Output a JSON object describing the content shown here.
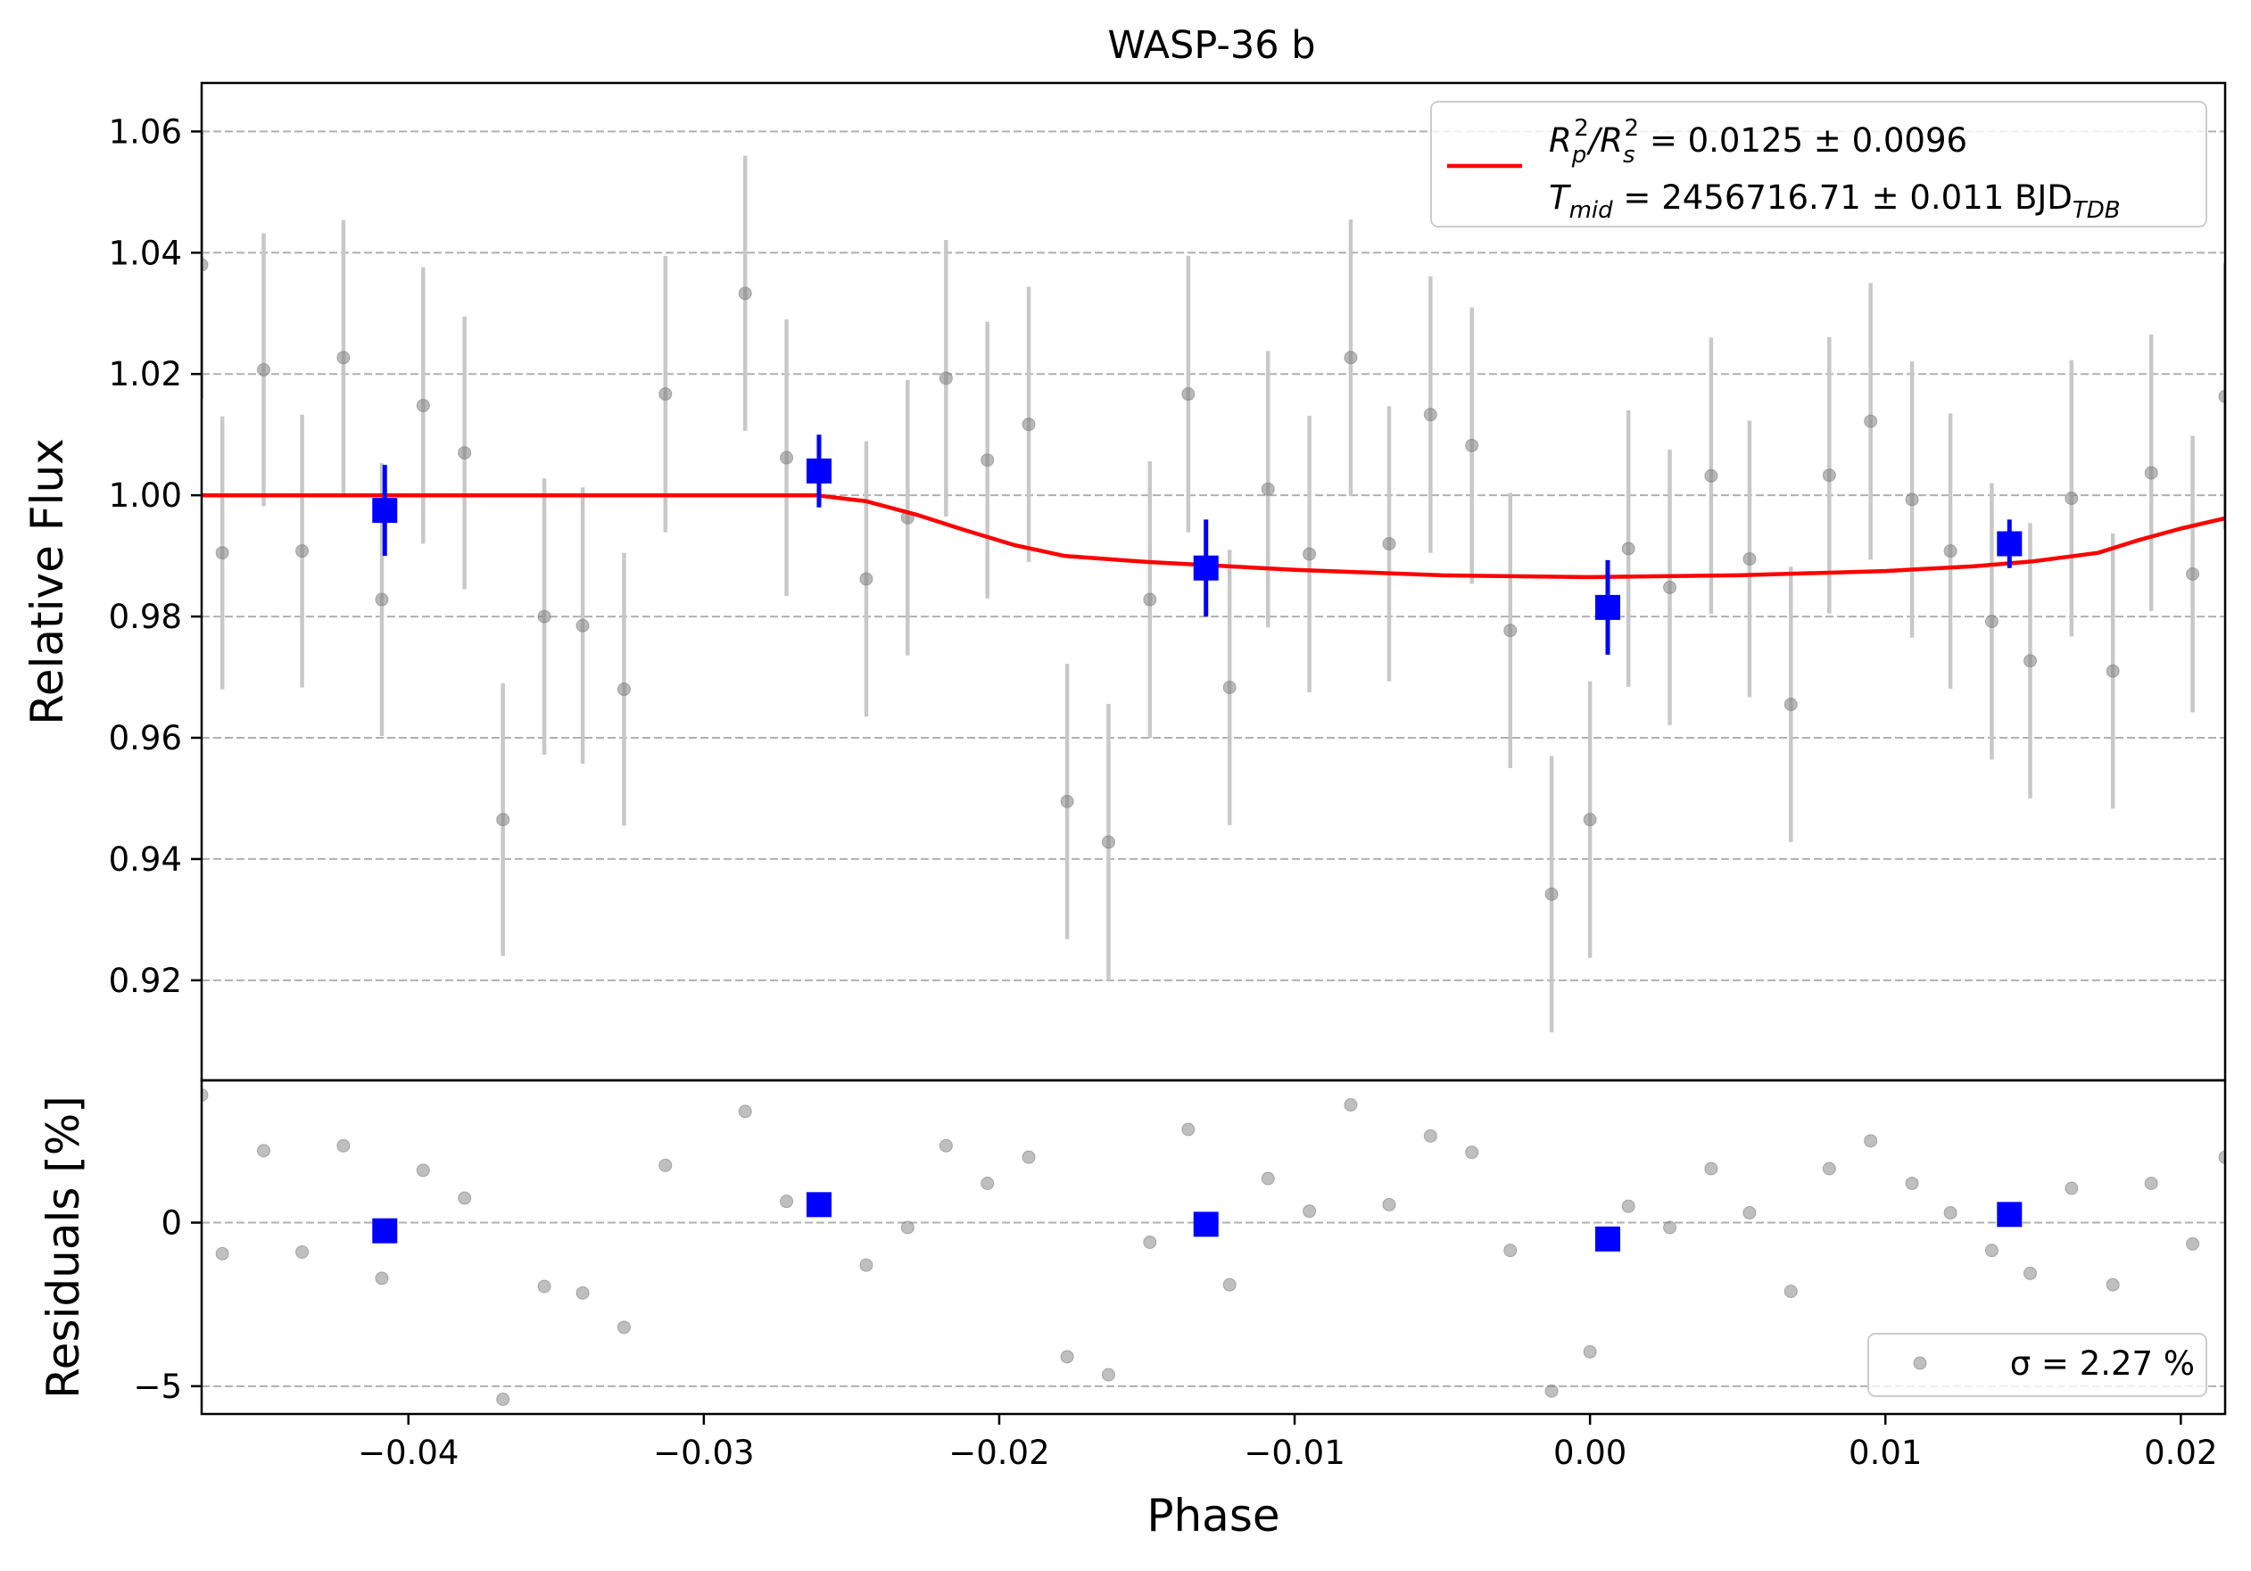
{
  "chart_data": {
    "type": "scatter",
    "title": "WASP-36 b",
    "xlabel": "Phase",
    "xlim": [
      -0.047,
      0.0215
    ],
    "xticks": [
      -0.04,
      -0.03,
      -0.02,
      -0.01,
      0.0,
      0.01,
      0.02
    ],
    "xtick_labels": [
      "−0.04",
      "−0.03",
      "−0.02",
      "−0.01",
      "0.00",
      "0.01",
      "0.02"
    ],
    "grid": "horizontal dashed",
    "top_panel": {
      "ylabel": "Relative Flux",
      "ylim": [
        0.9035,
        1.068
      ],
      "yticks": [
        0.92,
        0.94,
        0.96,
        0.98,
        1.0,
        1.02,
        1.04,
        1.06
      ],
      "ytick_labels": [
        "0.92",
        "0.94",
        "0.96",
        "0.98",
        "1.00",
        "1.02",
        "1.04",
        "1.06"
      ],
      "legend": {
        "placement": "top-right",
        "line1_base": "R",
        "line1_sub1": "p",
        "line1_sup1": "2",
        "line1_slash": "/R",
        "line1_sub2": "s",
        "line1_sup2": "2",
        "line1_rest": " = 0.0125 ± 0.0096",
        "line2_base": "T",
        "line2_sub1": "mid",
        "line2_rest": " = 2456716.71 ± 0.011 BJD",
        "line2_sub2": "TDB"
      },
      "data_points": [
        {
          "x": -0.047,
          "y": 1.038,
          "err": 0.022
        },
        {
          "x": -0.0463,
          "y": 0.9905,
          "err": 0.0225
        },
        {
          "x": -0.0449,
          "y": 1.0207,
          "err": 0.0225
        },
        {
          "x": -0.0436,
          "y": 0.9908,
          "err": 0.0225
        },
        {
          "x": -0.0422,
          "y": 1.0227,
          "err": 0.0227
        },
        {
          "x": -0.0409,
          "y": 0.9828,
          "err": 0.0225
        },
        {
          "x": -0.0395,
          "y": 1.0148,
          "err": 0.0228
        },
        {
          "x": -0.0381,
          "y": 1.007,
          "err": 0.0225
        },
        {
          "x": -0.0368,
          "y": 0.9465,
          "err": 0.0225
        },
        {
          "x": -0.0354,
          "y": 0.98,
          "err": 0.0228
        },
        {
          "x": -0.0341,
          "y": 0.9785,
          "err": 0.0228
        },
        {
          "x": -0.0327,
          "y": 0.968,
          "err": 0.0225
        },
        {
          "x": -0.0313,
          "y": 1.0167,
          "err": 0.0228
        },
        {
          "x": -0.0286,
          "y": 1.0333,
          "err": 0.0227
        },
        {
          "x": -0.0272,
          "y": 1.0062,
          "err": 0.0228
        },
        {
          "x": -0.0245,
          "y": 0.9862,
          "err": 0.0227
        },
        {
          "x": -0.0231,
          "y": 0.9963,
          "err": 0.0227
        },
        {
          "x": -0.0218,
          "y": 1.0193,
          "err": 0.0228
        },
        {
          "x": -0.0204,
          "y": 1.0058,
          "err": 0.0228
        },
        {
          "x": -0.019,
          "y": 1.0117,
          "err": 0.0227
        },
        {
          "x": -0.0177,
          "y": 0.9495,
          "err": 0.0227
        },
        {
          "x": -0.0163,
          "y": 0.9428,
          "err": 0.0228
        },
        {
          "x": -0.0149,
          "y": 0.9828,
          "err": 0.0228
        },
        {
          "x": -0.0136,
          "y": 1.0167,
          "err": 0.0228
        },
        {
          "x": -0.0122,
          "y": 0.9683,
          "err": 0.0227
        },
        {
          "x": -0.0109,
          "y": 1.001,
          "err": 0.0228
        },
        {
          "x": -0.0095,
          "y": 0.9903,
          "err": 0.0228
        },
        {
          "x": -0.0081,
          "y": 1.0227,
          "err": 0.0228
        },
        {
          "x": -0.0068,
          "y": 0.992,
          "err": 0.0227
        },
        {
          "x": -0.0054,
          "y": 1.0133,
          "err": 0.0228
        },
        {
          "x": -0.004,
          "y": 1.0082,
          "err": 0.0228
        },
        {
          "x": -0.0027,
          "y": 0.9777,
          "err": 0.0227
        },
        {
          "x": -0.0013,
          "y": 0.9342,
          "err": 0.0228
        },
        {
          "x": 0.0,
          "y": 0.9465,
          "err": 0.0228
        },
        {
          "x": 0.0013,
          "y": 0.9912,
          "err": 0.0228
        },
        {
          "x": 0.0027,
          "y": 0.9848,
          "err": 0.0227
        },
        {
          "x": 0.0041,
          "y": 1.0032,
          "err": 0.0228
        },
        {
          "x": 0.0054,
          "y": 0.9895,
          "err": 0.0228
        },
        {
          "x": 0.0068,
          "y": 0.9655,
          "err": 0.0227
        },
        {
          "x": 0.0081,
          "y": 1.0033,
          "err": 0.0228
        },
        {
          "x": 0.0095,
          "y": 1.0122,
          "err": 0.0228
        },
        {
          "x": 0.0109,
          "y": 0.9993,
          "err": 0.0228
        },
        {
          "x": 0.0122,
          "y": 0.9908,
          "err": 0.0227
        },
        {
          "x": 0.0136,
          "y": 0.9792,
          "err": 0.0228
        },
        {
          "x": 0.0149,
          "y": 0.9727,
          "err": 0.0227
        },
        {
          "x": 0.0163,
          "y": 0.9995,
          "err": 0.0228
        },
        {
          "x": 0.0177,
          "y": 0.971,
          "err": 0.0227
        },
        {
          "x": 0.019,
          "y": 1.0037,
          "err": 0.0228
        },
        {
          "x": 0.0204,
          "y": 0.987,
          "err": 0.0228
        },
        {
          "x": 0.0215,
          "y": 1.0163,
          "err": 0.022
        }
      ],
      "binned_points": [
        {
          "x": -0.0408,
          "y": 0.9975,
          "err": 0.0075
        },
        {
          "x": -0.0261,
          "y": 1.004,
          "err": 0.006
        },
        {
          "x": -0.013,
          "y": 0.988,
          "err": 0.008
        },
        {
          "x": 0.0006,
          "y": 0.9815,
          "err": 0.0078
        },
        {
          "x": 0.0142,
          "y": 0.992,
          "err": 0.004
        }
      ],
      "model": [
        {
          "x": -0.047,
          "y": 1.0
        },
        {
          "x": -0.0262,
          "y": 1.0
        },
        {
          "x": -0.0245,
          "y": 0.999
        },
        {
          "x": -0.0228,
          "y": 0.9968
        },
        {
          "x": -0.0212,
          "y": 0.9943
        },
        {
          "x": -0.0195,
          "y": 0.9918
        },
        {
          "x": -0.0178,
          "y": 0.99
        },
        {
          "x": -0.015,
          "y": 0.989
        },
        {
          "x": -0.01,
          "y": 0.9877
        },
        {
          "x": -0.005,
          "y": 0.9868
        },
        {
          "x": 0.0,
          "y": 0.9865
        },
        {
          "x": 0.005,
          "y": 0.9868
        },
        {
          "x": 0.01,
          "y": 0.9875
        },
        {
          "x": 0.013,
          "y": 0.9883
        },
        {
          "x": 0.015,
          "y": 0.9891
        },
        {
          "x": 0.0172,
          "y": 0.9905
        },
        {
          "x": 0.0185,
          "y": 0.9925
        },
        {
          "x": 0.02,
          "y": 0.9945
        },
        {
          "x": 0.0215,
          "y": 0.9962
        }
      ]
    },
    "bottom_panel": {
      "ylabel": "Residuals [%]",
      "ylim": [
        -5.85,
        4.35
      ],
      "yticks": [
        -5,
        0
      ],
      "ytick_labels": [
        "−5",
        "0"
      ],
      "legend": {
        "placement": "bottom-right",
        "label": "σ = 2.27 %"
      },
      "residuals": [
        {
          "x": -0.047,
          "y": 3.9
        },
        {
          "x": -0.0463,
          "y": -0.95
        },
        {
          "x": -0.0449,
          "y": 2.2
        },
        {
          "x": -0.0436,
          "y": -0.9
        },
        {
          "x": -0.0422,
          "y": 2.35
        },
        {
          "x": -0.0409,
          "y": -1.7
        },
        {
          "x": -0.0395,
          "y": 1.6
        },
        {
          "x": -0.0381,
          "y": 0.75
        },
        {
          "x": -0.0368,
          "y": -5.4
        },
        {
          "x": -0.0354,
          "y": -1.95
        },
        {
          "x": -0.0341,
          "y": -2.15
        },
        {
          "x": -0.0327,
          "y": -3.2
        },
        {
          "x": -0.0313,
          "y": 1.75
        },
        {
          "x": -0.0286,
          "y": 3.4
        },
        {
          "x": -0.0272,
          "y": 0.65
        },
        {
          "x": -0.0245,
          "y": -1.3
        },
        {
          "x": -0.0231,
          "y": -0.15
        },
        {
          "x": -0.0218,
          "y": 2.35
        },
        {
          "x": -0.0204,
          "y": 1.2
        },
        {
          "x": -0.019,
          "y": 2.0
        },
        {
          "x": -0.0177,
          "y": -4.1
        },
        {
          "x": -0.0163,
          "y": -4.65
        },
        {
          "x": -0.0149,
          "y": -0.6
        },
        {
          "x": -0.0136,
          "y": 2.85
        },
        {
          "x": -0.0122,
          "y": -1.9
        },
        {
          "x": -0.0109,
          "y": 1.35
        },
        {
          "x": -0.0095,
          "y": 0.35
        },
        {
          "x": -0.0081,
          "y": 3.6
        },
        {
          "x": -0.0068,
          "y": 0.55
        },
        {
          "x": -0.0054,
          "y": 2.65
        },
        {
          "x": -0.004,
          "y": 2.15
        },
        {
          "x": -0.0027,
          "y": -0.85
        },
        {
          "x": -0.0013,
          "y": -5.15
        },
        {
          "x": 0.0,
          "y": -3.95
        },
        {
          "x": 0.0013,
          "y": 0.5
        },
        {
          "x": 0.0027,
          "y": -0.15
        },
        {
          "x": 0.0041,
          "y": 1.65
        },
        {
          "x": 0.0054,
          "y": 0.3
        },
        {
          "x": 0.0068,
          "y": -2.1
        },
        {
          "x": 0.0081,
          "y": 1.65
        },
        {
          "x": 0.0095,
          "y": 2.5
        },
        {
          "x": 0.0109,
          "y": 1.2
        },
        {
          "x": 0.0122,
          "y": 0.3
        },
        {
          "x": 0.0136,
          "y": -0.85
        },
        {
          "x": 0.0149,
          "y": -1.55
        },
        {
          "x": 0.0163,
          "y": 1.05
        },
        {
          "x": 0.0177,
          "y": -1.9
        },
        {
          "x": 0.019,
          "y": 1.2
        },
        {
          "x": 0.0204,
          "y": -0.65
        },
        {
          "x": 0.0215,
          "y": 2.0
        }
      ],
      "binned_residuals": [
        {
          "x": -0.0408,
          "y": -0.25
        },
        {
          "x": -0.0261,
          "y": 0.55
        },
        {
          "x": -0.013,
          "y": -0.05
        },
        {
          "x": 0.0006,
          "y": -0.5
        },
        {
          "x": 0.0142,
          "y": 0.25
        }
      ]
    },
    "colors": {
      "data": "#808080",
      "errorbar": "#c8c8c8",
      "binned": "#0000ff",
      "model": "#ff0000",
      "grid": "#b0b0b0"
    }
  }
}
